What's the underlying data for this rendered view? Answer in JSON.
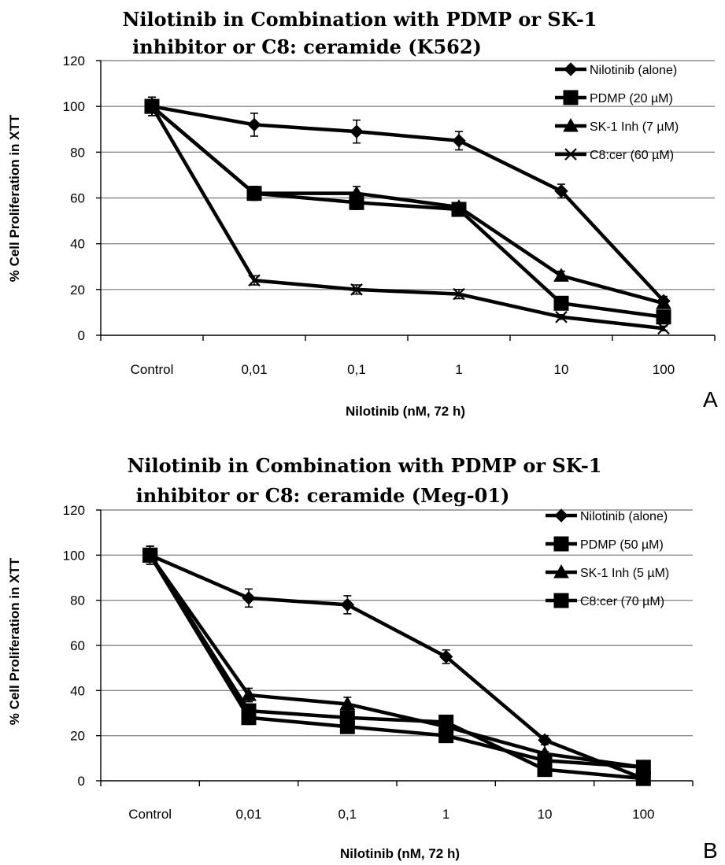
{
  "chart_data": [
    {
      "type": "line",
      "title_lines": [
        "Nilotinib in Combination with PDMP or SK-1",
        "inhibitor or C8: ceramide (K562)"
      ],
      "xlabel": "Nilotinib (nM, 72 h)",
      "ylabel": "% Cell Proliferation in XTT",
      "categories": [
        "Control",
        "0,01",
        "0,1",
        "1",
        "10",
        "100"
      ],
      "y_ticks": [
        "0",
        "20",
        "40",
        "60",
        "80",
        "100",
        "120"
      ],
      "ylim": [
        0,
        120
      ],
      "grid": true,
      "legend_position": "top-right",
      "panel_label": "A",
      "series": [
        {
          "name": "Nilotinib (alone)",
          "marker": "diamond",
          "values": [
            100,
            92,
            89,
            85,
            63,
            15
          ],
          "errors": [
            4,
            5,
            5,
            4,
            3,
            2
          ]
        },
        {
          "name": "PDMP (20 µM)",
          "marker": "square",
          "values": [
            100,
            62,
            58,
            55,
            14,
            8
          ],
          "errors": [
            4,
            3,
            3,
            2,
            2,
            1
          ]
        },
        {
          "name": "SK-1 Inh (7 µM)",
          "marker": "triangle",
          "values": [
            100,
            62,
            62,
            56,
            26,
            14
          ],
          "errors": [
            4,
            3,
            3,
            2,
            2,
            1
          ]
        },
        {
          "name": "C8:cer (60 µM)",
          "marker": "x",
          "values": [
            100,
            24,
            20,
            18,
            8,
            3
          ],
          "errors": [
            4,
            2,
            2,
            2,
            1,
            1
          ]
        }
      ]
    },
    {
      "type": "line",
      "title_lines": [
        "Nilotinib in Combination with PDMP or SK-1",
        "inhibitor or C8: ceramide (Meg-01)"
      ],
      "xlabel": "Nilotinib (nM, 72 h)",
      "ylabel": "% Cell Proliferation in XTT",
      "categories": [
        "Control",
        "0,01",
        "0,1",
        "1",
        "10",
        "100"
      ],
      "y_ticks": [
        "0",
        "20",
        "40",
        "60",
        "80",
        "100",
        "120"
      ],
      "ylim": [
        0,
        120
      ],
      "grid": true,
      "legend_position": "top-right",
      "panel_label": "B",
      "series": [
        {
          "name": "Nilotinib (alone)",
          "marker": "diamond",
          "values": [
            100,
            81,
            78,
            55,
            18,
            1
          ],
          "errors": [
            4,
            4,
            4,
            3,
            2,
            1
          ]
        },
        {
          "name": "PDMP (50 µM)",
          "marker": "square",
          "values": [
            100,
            31,
            28,
            26,
            5,
            1
          ],
          "errors": [
            4,
            3,
            3,
            2,
            1,
            1
          ]
        },
        {
          "name": "SK-1 Inh (5 µM)",
          "marker": "triangle",
          "values": [
            100,
            38,
            34,
            24,
            12,
            6
          ],
          "errors": [
            4,
            3,
            3,
            2,
            1,
            1
          ]
        },
        {
          "name": "C8:cer (70 µM)",
          "marker": "square",
          "values": [
            100,
            28,
            24,
            20,
            9,
            6
          ],
          "errors": [
            4,
            3,
            2,
            2,
            1,
            1
          ]
        }
      ]
    }
  ]
}
